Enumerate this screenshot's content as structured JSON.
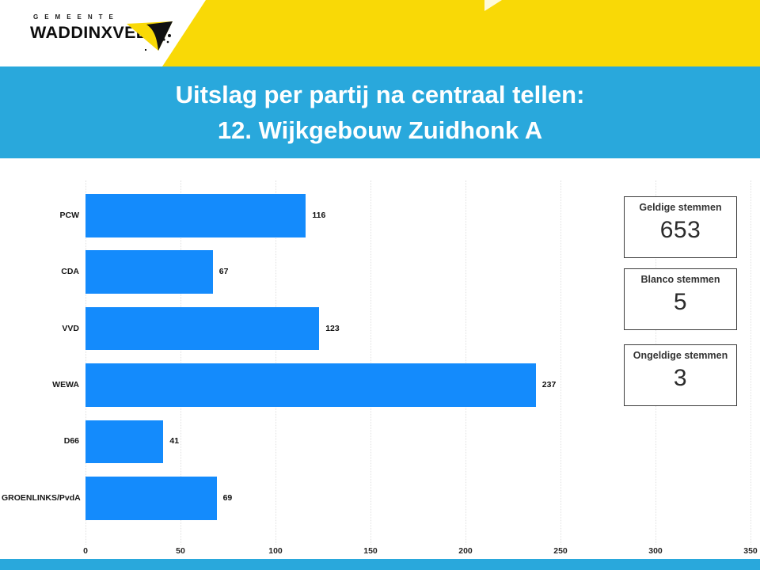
{
  "header": {
    "gemeente_label": "GEMEENTE",
    "org_name": "WADDINXVEEN",
    "brand_yellow": "#F9D906",
    "brand_blue": "#29A8DC"
  },
  "title": {
    "line1": "Uitslag per partij na centraal tellen:",
    "line2": "12. Wijkgebouw Zuidhonk A"
  },
  "chart_data": {
    "type": "bar",
    "orientation": "horizontal",
    "categories": [
      "PCW",
      "CDA",
      "VVD",
      "WEWA",
      "D66",
      "GROENLINKS/PvdA"
    ],
    "values": [
      116,
      67,
      123,
      237,
      41,
      69
    ],
    "xlim": [
      0,
      350
    ],
    "xticks": [
      0,
      50,
      100,
      150,
      200,
      250,
      300,
      350
    ],
    "bar_color": "#148BFC",
    "grid": true,
    "gridline_style": "dotted",
    "value_labels": true,
    "title": "",
    "xlabel": "",
    "ylabel": ""
  },
  "kpis": [
    {
      "label": "Geldige stemmen",
      "value": "653"
    },
    {
      "label": "Blanco stemmen",
      "value": "5"
    },
    {
      "label": "Ongeldige stemmen",
      "value": "3"
    }
  ]
}
